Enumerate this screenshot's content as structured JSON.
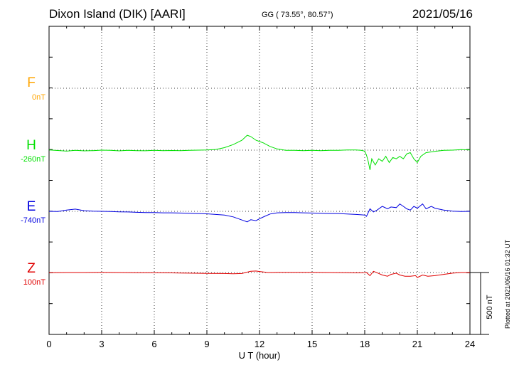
{
  "header": {
    "station": "Dixon Island (DIK)  [AARI]",
    "coords": "GG ( 73.55°,  80.57°)",
    "date": "2021/05/16"
  },
  "plotted_note": "Plotted at 2021/06/16 01:32 UT",
  "colors": {
    "F": "#ffa500",
    "H": "#00e000",
    "E": "#0000e0",
    "Z": "#e00000"
  },
  "chart_data": {
    "type": "line",
    "xlabel": "U T (hour)",
    "xlim": [
      0,
      24
    ],
    "xticks": [
      "0",
      "3",
      "6",
      "9",
      "12",
      "15",
      "18",
      "21",
      "24"
    ],
    "scale_bar": {
      "label": "500 nT",
      "value_nT": 500
    },
    "series": [
      {
        "name": "F",
        "baseline": "0nT",
        "offset": 0,
        "points": []
      },
      {
        "name": "H",
        "baseline": "-260nT",
        "offset": -260,
        "points": [
          [
            0,
            -258
          ],
          [
            0.5,
            -263
          ],
          [
            1,
            -268
          ],
          [
            1.5,
            -262
          ],
          [
            2,
            -266
          ],
          [
            2.5,
            -264
          ],
          [
            3,
            -260
          ],
          [
            3.5,
            -262
          ],
          [
            4,
            -266
          ],
          [
            4.5,
            -262
          ],
          [
            5,
            -264
          ],
          [
            5.5,
            -265
          ],
          [
            6,
            -262
          ],
          [
            6.5,
            -264
          ],
          [
            7,
            -263
          ],
          [
            7.5,
            -264
          ],
          [
            8,
            -262
          ],
          [
            8.5,
            -260
          ],
          [
            9,
            -258
          ],
          [
            9.5,
            -255
          ],
          [
            10,
            -240
          ],
          [
            10.5,
            -215
          ],
          [
            11,
            -180
          ],
          [
            11.3,
            -140
          ],
          [
            11.5,
            -150
          ],
          [
            11.8,
            -180
          ],
          [
            12.2,
            -200
          ],
          [
            12.6,
            -230
          ],
          [
            13,
            -250
          ],
          [
            13.5,
            -262
          ],
          [
            14,
            -262
          ],
          [
            14.5,
            -264
          ],
          [
            15,
            -262
          ],
          [
            15.5,
            -264
          ],
          [
            16,
            -262
          ],
          [
            16.5,
            -262
          ],
          [
            17,
            -258
          ],
          [
            17.5,
            -258
          ],
          [
            17.8,
            -262
          ],
          [
            18,
            -268
          ],
          [
            18.1,
            -300
          ],
          [
            18.2,
            -350
          ],
          [
            18.3,
            -420
          ],
          [
            18.4,
            -330
          ],
          [
            18.6,
            -380
          ],
          [
            18.8,
            -330
          ],
          [
            19,
            -350
          ],
          [
            19.2,
            -310
          ],
          [
            19.4,
            -360
          ],
          [
            19.6,
            -320
          ],
          [
            19.8,
            -330
          ],
          [
            20,
            -310
          ],
          [
            20.2,
            -330
          ],
          [
            20.4,
            -290
          ],
          [
            20.6,
            -280
          ],
          [
            20.8,
            -330
          ],
          [
            21,
            -360
          ],
          [
            21.2,
            -310
          ],
          [
            21.5,
            -280
          ],
          [
            22,
            -270
          ],
          [
            22.5,
            -262
          ],
          [
            23,
            -260
          ],
          [
            23.5,
            -256
          ],
          [
            24,
            -258
          ]
        ]
      },
      {
        "name": "E",
        "baseline": "-740nT",
        "offset": -740,
        "points": [
          [
            0,
            -740
          ],
          [
            0.5,
            -742
          ],
          [
            1,
            -730
          ],
          [
            1.5,
            -722
          ],
          [
            2,
            -735
          ],
          [
            2.5,
            -738
          ],
          [
            3,
            -740
          ],
          [
            3.5,
            -742
          ],
          [
            4,
            -744
          ],
          [
            4.5,
            -745
          ],
          [
            5,
            -748
          ],
          [
            5.5,
            -750
          ],
          [
            6,
            -750
          ],
          [
            6.5,
            -752
          ],
          [
            7,
            -752
          ],
          [
            7.5,
            -754
          ],
          [
            8,
            -756
          ],
          [
            8.5,
            -758
          ],
          [
            9,
            -760
          ],
          [
            9.5,
            -765
          ],
          [
            10,
            -770
          ],
          [
            10.5,
            -785
          ],
          [
            11,
            -810
          ],
          [
            11.3,
            -825
          ],
          [
            11.5,
            -808
          ],
          [
            11.8,
            -815
          ],
          [
            12,
            -800
          ],
          [
            12.3,
            -780
          ],
          [
            12.6,
            -762
          ],
          [
            13,
            -752
          ],
          [
            13.5,
            -750
          ],
          [
            14,
            -750
          ],
          [
            14.5,
            -752
          ],
          [
            15,
            -754
          ],
          [
            15.5,
            -756
          ],
          [
            16,
            -758
          ],
          [
            16.5,
            -758
          ],
          [
            17,
            -762
          ],
          [
            17.5,
            -765
          ],
          [
            17.8,
            -768
          ],
          [
            18,
            -770
          ],
          [
            18.1,
            -780
          ],
          [
            18.3,
            -720
          ],
          [
            18.5,
            -745
          ],
          [
            18.7,
            -730
          ],
          [
            19,
            -700
          ],
          [
            19.3,
            -720
          ],
          [
            19.5,
            -705
          ],
          [
            19.8,
            -710
          ],
          [
            20,
            -680
          ],
          [
            20.2,
            -700
          ],
          [
            20.4,
            -720
          ],
          [
            20.6,
            -730
          ],
          [
            20.8,
            -700
          ],
          [
            21,
            -715
          ],
          [
            21.3,
            -680
          ],
          [
            21.5,
            -720
          ],
          [
            21.8,
            -700
          ],
          [
            22,
            -715
          ],
          [
            22.5,
            -730
          ],
          [
            23,
            -738
          ],
          [
            23.5,
            -742
          ],
          [
            24,
            -740
          ]
        ]
      },
      {
        "name": "Z",
        "baseline": "100nT",
        "offset": 100,
        "points": [
          [
            0,
            98
          ],
          [
            1,
            100
          ],
          [
            2,
            100
          ],
          [
            3,
            101
          ],
          [
            4,
            100
          ],
          [
            5,
            99
          ],
          [
            6,
            99
          ],
          [
            7,
            97
          ],
          [
            8,
            95
          ],
          [
            9,
            93
          ],
          [
            10,
            92
          ],
          [
            10.5,
            90
          ],
          [
            11,
            92
          ],
          [
            11.2,
            100
          ],
          [
            11.5,
            110
          ],
          [
            11.8,
            112
          ],
          [
            12,
            108
          ],
          [
            12.5,
            100
          ],
          [
            13,
            101
          ],
          [
            14,
            101
          ],
          [
            15,
            101
          ],
          [
            16,
            100
          ],
          [
            17,
            98
          ],
          [
            17.5,
            97
          ],
          [
            18,
            98
          ],
          [
            18.1,
            100
          ],
          [
            18.3,
            75
          ],
          [
            18.5,
            110
          ],
          [
            18.7,
            98
          ],
          [
            19,
            80
          ],
          [
            19.3,
            70
          ],
          [
            19.5,
            85
          ],
          [
            19.8,
            95
          ],
          [
            20,
            80
          ],
          [
            20.3,
            70
          ],
          [
            20.6,
            70
          ],
          [
            20.9,
            75
          ],
          [
            21,
            60
          ],
          [
            21.3,
            80
          ],
          [
            21.6,
            70
          ],
          [
            22,
            75
          ],
          [
            22.5,
            85
          ],
          [
            23,
            95
          ],
          [
            23.5,
            100
          ],
          [
            24,
            100
          ]
        ]
      }
    ]
  }
}
